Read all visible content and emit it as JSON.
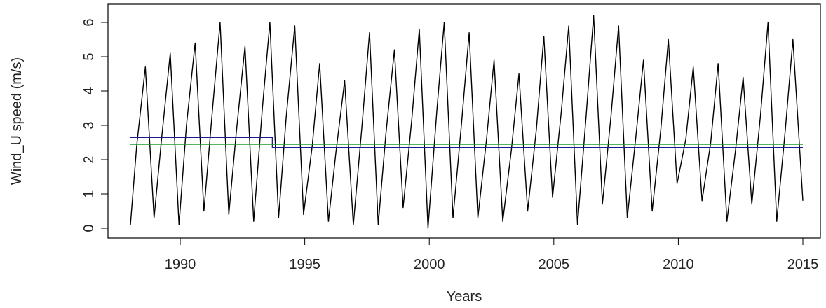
{
  "chart_data": {
    "type": "line",
    "xlabel": "Years",
    "ylabel": "Wind_U speed (m/s)",
    "xlim": [
      1988,
      2015
    ],
    "ylim": [
      0,
      6.3
    ],
    "x_ticks": [
      1990,
      1995,
      2000,
      2005,
      2010,
      2015
    ],
    "y_ticks": [
      0,
      1,
      2,
      3,
      4,
      5,
      6
    ],
    "grid": false,
    "legend": "none",
    "series": [
      {
        "color": "#000000",
        "x": [
          1988.0,
          1988.25,
          1988.6,
          1988.95,
          1989.25,
          1989.6,
          1989.95,
          1990.25,
          1990.6,
          1990.95,
          1991.3,
          1991.6,
          1991.95,
          1992.25,
          1992.6,
          1992.95,
          1993.3,
          1993.6,
          1993.95,
          1994.25,
          1994.6,
          1994.95,
          1995.3,
          1995.6,
          1995.95,
          1996.25,
          1996.6,
          1996.95,
          1997.3,
          1997.6,
          1997.95,
          1998.25,
          1998.6,
          1998.95,
          1999.3,
          1999.6,
          1999.95,
          2000.3,
          2000.6,
          2000.95,
          2001.3,
          2001.6,
          2001.95,
          2002.3,
          2002.6,
          2002.95,
          2003.3,
          2003.6,
          2003.95,
          2004.3,
          2004.6,
          2004.95,
          2005.3,
          2005.6,
          2005.95,
          2006.3,
          2006.6,
          2006.95,
          2007.3,
          2007.6,
          2007.95,
          2008.3,
          2008.6,
          2008.95,
          2009.3,
          2009.6,
          2009.95,
          2010.3,
          2010.6,
          2010.95,
          2011.3,
          2011.6,
          2011.95,
          2012.3,
          2012.6,
          2012.95,
          2013.3,
          2013.6,
          2013.95,
          2014.3,
          2014.6,
          2015.0
        ],
        "y": [
          0.1,
          2.4,
          4.7,
          0.3,
          2.6,
          5.1,
          0.1,
          3.0,
          5.4,
          0.5,
          3.5,
          6.0,
          0.4,
          2.8,
          5.3,
          0.2,
          3.5,
          6.0,
          0.3,
          3.2,
          5.9,
          0.4,
          2.4,
          4.8,
          0.2,
          2.2,
          4.3,
          0.1,
          3.0,
          5.7,
          0.1,
          2.7,
          5.2,
          0.6,
          3.2,
          5.8,
          0.0,
          3.4,
          6.0,
          0.3,
          3.1,
          5.7,
          0.3,
          2.6,
          4.9,
          0.2,
          2.3,
          4.5,
          0.5,
          2.9,
          5.6,
          0.9,
          3.4,
          5.9,
          0.1,
          3.3,
          6.2,
          0.7,
          3.3,
          5.9,
          0.3,
          2.7,
          4.9,
          0.5,
          2.9,
          5.5,
          1.3,
          2.6,
          4.7,
          0.8,
          2.5,
          4.8,
          0.2,
          2.3,
          4.4,
          0.7,
          3.3,
          6.0,
          0.2,
          2.9,
          5.5,
          0.8
        ]
      },
      {
        "color": "#1a1a8c",
        "x": [
          1988.0,
          1993.7,
          1993.7,
          2015.0
        ],
        "y": [
          2.65,
          2.65,
          2.35,
          2.35
        ]
      },
      {
        "color": "#1a9a2a",
        "x": [
          1988.0,
          2015.0
        ],
        "y": [
          2.45,
          2.45
        ]
      }
    ]
  }
}
